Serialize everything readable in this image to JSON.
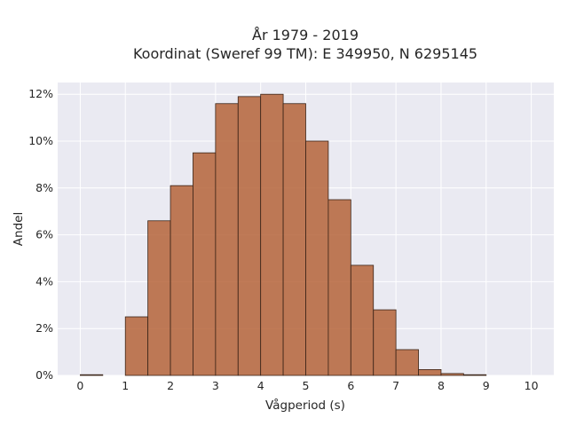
{
  "chart_data": {
    "type": "bar",
    "title_line1": "År 1979 - 2019",
    "title_line2": "Koordinat (Sweref 99 TM): E 349950, N 6295145",
    "xlabel": "Vågperiod (s)",
    "ylabel": "Andel",
    "xlim": [
      -0.5,
      10.5
    ],
    "ylim": [
      0,
      12.5
    ],
    "x_ticks": [
      0,
      1,
      2,
      3,
      4,
      5,
      6,
      7,
      8,
      9,
      10
    ],
    "x_tick_labels": [
      "0",
      "1",
      "2",
      "3",
      "4",
      "5",
      "6",
      "7",
      "8",
      "9",
      "10"
    ],
    "y_ticks": [
      0,
      2,
      4,
      6,
      8,
      10,
      12
    ],
    "y_tick_labels": [
      "0%",
      "2%",
      "4%",
      "6%",
      "8%",
      "10%",
      "12%"
    ],
    "bin_width": 0.5,
    "bin_starts": [
      0,
      0.5,
      1,
      1.5,
      2,
      2.5,
      3,
      3.5,
      4,
      4.5,
      5,
      5.5,
      6,
      6.5,
      7,
      7.5,
      8,
      8.5,
      9,
      9.5
    ],
    "values": [
      0.03,
      0,
      2.5,
      6.6,
      8.1,
      9.5,
      11.6,
      11.9,
      12.0,
      11.6,
      10.0,
      7.5,
      4.7,
      2.8,
      1.1,
      0.25,
      0.08,
      0.03,
      0,
      0
    ],
    "bar_color": "#b5643a",
    "background_color": "#eaeaf2",
    "grid": true
  }
}
